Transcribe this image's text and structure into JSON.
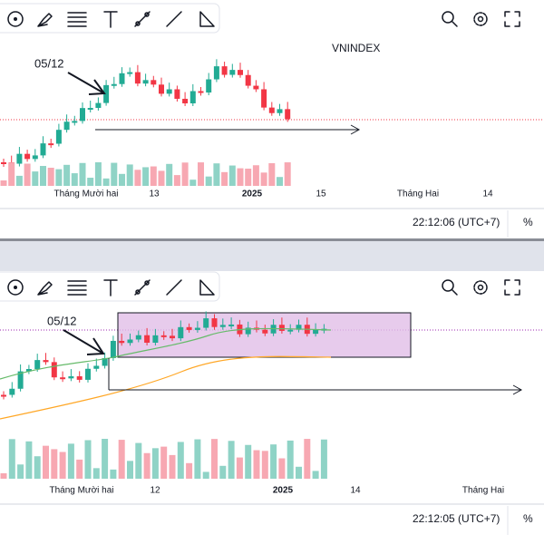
{
  "top": {
    "symbol": "VNINDEX",
    "annotation": "05/12",
    "x_labels": [
      "Tháng Mười hai",
      "13",
      "2025",
      "15",
      "Tháng Hai",
      "14"
    ],
    "time": "22:12:06 (UTC+7)",
    "percent": "%"
  },
  "bottom": {
    "annotation": "05/12",
    "x_labels": [
      "Tháng Mười hai",
      "12",
      "2025",
      "14",
      "Tháng Hai"
    ],
    "time": "22:12:05 (UTC+7)",
    "percent": "%"
  }
}
